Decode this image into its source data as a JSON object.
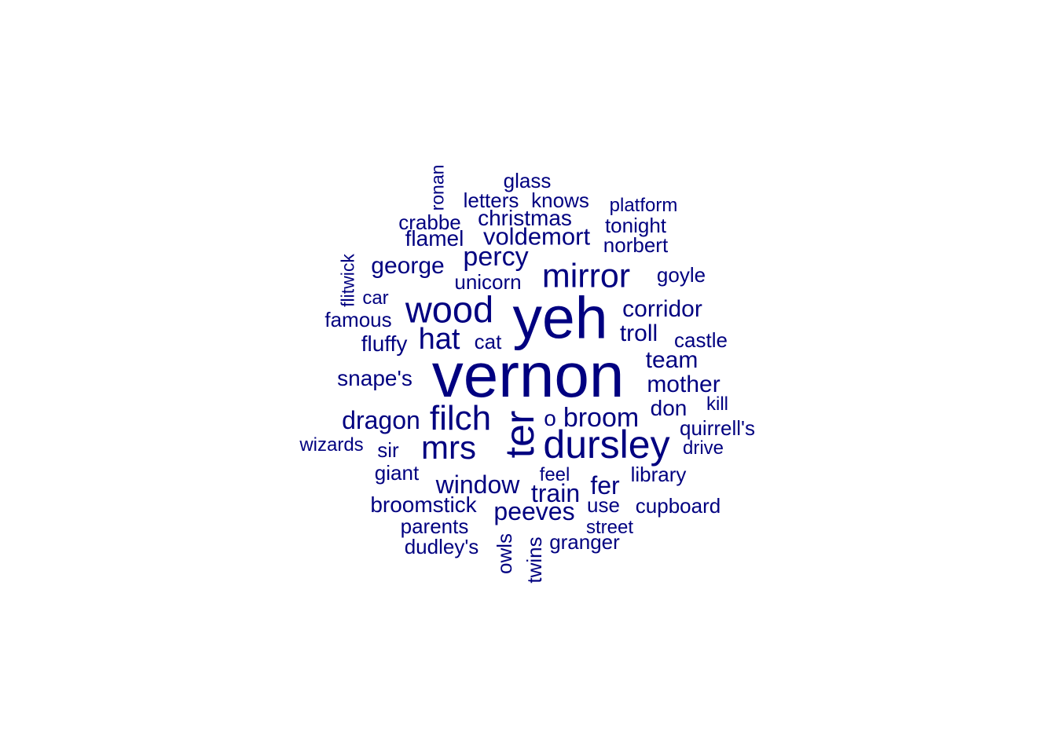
{
  "color": "#000080",
  "words": [
    {
      "text": "vernon",
      "weight": 10,
      "rotated": false
    },
    {
      "text": "yeh",
      "weight": 9,
      "rotated": false
    },
    {
      "text": "ter",
      "weight": 8,
      "rotated": true
    },
    {
      "text": "dursley",
      "weight": 7,
      "rotated": false
    },
    {
      "text": "mirror",
      "weight": 6,
      "rotated": false
    },
    {
      "text": "wood",
      "weight": 6,
      "rotated": false
    },
    {
      "text": "filch",
      "weight": 6,
      "rotated": false
    },
    {
      "text": "mrs",
      "weight": 6,
      "rotated": false
    },
    {
      "text": "hat",
      "weight": 5,
      "rotated": false
    },
    {
      "text": "percy",
      "weight": 5,
      "rotated": false
    },
    {
      "text": "broom",
      "weight": 5,
      "rotated": false
    },
    {
      "text": "window",
      "weight": 4,
      "rotated": false
    },
    {
      "text": "peeves",
      "weight": 4,
      "rotated": false
    },
    {
      "text": "train",
      "weight": 4,
      "rotated": false
    },
    {
      "text": "fer",
      "weight": 4,
      "rotated": false
    },
    {
      "text": "dragon",
      "weight": 4,
      "rotated": false
    },
    {
      "text": "voldemort",
      "weight": 4,
      "rotated": false
    },
    {
      "text": "corridor",
      "weight": 4,
      "rotated": false
    },
    {
      "text": "troll",
      "weight": 4,
      "rotated": false
    },
    {
      "text": "george",
      "weight": 4,
      "rotated": false
    },
    {
      "text": "team",
      "weight": 4,
      "rotated": false
    },
    {
      "text": "mother",
      "weight": 4,
      "rotated": false
    },
    {
      "text": "snape's",
      "weight": 3,
      "rotated": false
    },
    {
      "text": "broomstick",
      "weight": 3,
      "rotated": false
    },
    {
      "text": "fluffy",
      "weight": 3,
      "rotated": false
    },
    {
      "text": "christmas",
      "weight": 3,
      "rotated": false
    },
    {
      "text": "flamel",
      "weight": 3,
      "rotated": false
    },
    {
      "text": "don",
      "weight": 3,
      "rotated": false
    },
    {
      "text": "o",
      "weight": 3,
      "rotated": false
    },
    {
      "text": "library",
      "weight": 2,
      "rotated": false
    },
    {
      "text": "famous",
      "weight": 2,
      "rotated": false
    },
    {
      "text": "giant",
      "weight": 2,
      "rotated": false
    },
    {
      "text": "parents",
      "weight": 2,
      "rotated": false
    },
    {
      "text": "dudley's",
      "weight": 2,
      "rotated": false
    },
    {
      "text": "granger",
      "weight": 2,
      "rotated": false
    },
    {
      "text": "use",
      "weight": 2,
      "rotated": false
    },
    {
      "text": "cupboard",
      "weight": 2,
      "rotated": false
    },
    {
      "text": "castle",
      "weight": 2,
      "rotated": false
    },
    {
      "text": "goyle",
      "weight": 2,
      "rotated": false
    },
    {
      "text": "norbert",
      "weight": 2,
      "rotated": false
    },
    {
      "text": "tonight",
      "weight": 2,
      "rotated": false
    },
    {
      "text": "crabbe",
      "weight": 2,
      "rotated": false
    },
    {
      "text": "letters",
      "weight": 2,
      "rotated": false
    },
    {
      "text": "knows",
      "weight": 2,
      "rotated": false
    },
    {
      "text": "glass",
      "weight": 2,
      "rotated": false
    },
    {
      "text": "unicorn",
      "weight": 2,
      "rotated": false
    },
    {
      "text": "cat",
      "weight": 2,
      "rotated": false
    },
    {
      "text": "quirrell's",
      "weight": 2,
      "rotated": false
    },
    {
      "text": "sir",
      "weight": 2,
      "rotated": false
    },
    {
      "text": "owls",
      "weight": 2,
      "rotated": true
    },
    {
      "text": "twins",
      "weight": 2,
      "rotated": true
    },
    {
      "text": "flitwick",
      "weight": 2,
      "rotated": true
    },
    {
      "text": "ronan",
      "weight": 2,
      "rotated": true
    },
    {
      "text": "platform",
      "weight": 1,
      "rotated": false
    },
    {
      "text": "car",
      "weight": 1,
      "rotated": false
    },
    {
      "text": "feel",
      "weight": 1,
      "rotated": false
    },
    {
      "text": "street",
      "weight": 1,
      "rotated": false
    },
    {
      "text": "drive",
      "weight": 1,
      "rotated": false
    },
    {
      "text": "kill",
      "weight": 1,
      "rotated": false
    },
    {
      "text": "wizards",
      "weight": 1,
      "rotated": false
    }
  ]
}
